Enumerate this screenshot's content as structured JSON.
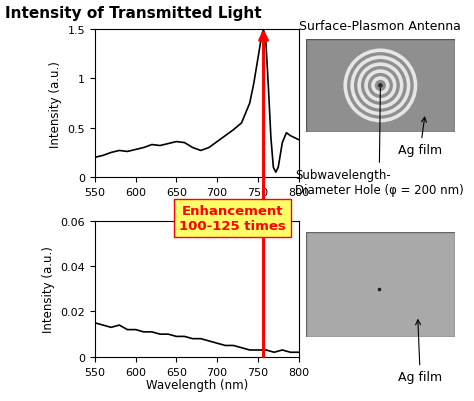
{
  "title": "Intensity of Transmitted Light",
  "annotations": [
    "Enhancement\n100-125 times"
  ],
  "chart_data": [
    {
      "type": "line",
      "y_label": "Intensity (a.u.)",
      "x": [
        550,
        560,
        570,
        580,
        590,
        600,
        610,
        620,
        630,
        640,
        650,
        660,
        670,
        680,
        690,
        700,
        710,
        720,
        730,
        740,
        745,
        750,
        755,
        757,
        760,
        763,
        766,
        769,
        772,
        775,
        780,
        785,
        790,
        800
      ],
      "values": [
        0.2,
        0.22,
        0.25,
        0.27,
        0.26,
        0.28,
        0.3,
        0.33,
        0.32,
        0.34,
        0.36,
        0.35,
        0.3,
        0.27,
        0.3,
        0.36,
        0.42,
        0.48,
        0.55,
        0.75,
        0.95,
        1.2,
        1.45,
        1.5,
        1.35,
        0.9,
        0.4,
        0.1,
        0.05,
        0.1,
        0.35,
        0.45,
        0.42,
        0.38
      ],
      "color": "#000000",
      "xlim": [
        550,
        800
      ],
      "xticks": [
        550,
        600,
        650,
        700,
        750,
        800
      ],
      "ylim": [
        0,
        1.5
      ],
      "yticks": [
        0,
        0.5,
        1,
        1.5
      ],
      "grid": false,
      "annotations": [
        "Surface-Plasmon Antenna",
        "Ag film",
        "Subwavelength-\nDiameter Hole (φ = 200 nm)"
      ]
    },
    {
      "type": "line",
      "x_label": "Wavelength (nm)",
      "y_label": "Intensity (a.u.)",
      "x": [
        550,
        560,
        570,
        580,
        590,
        600,
        610,
        620,
        630,
        640,
        650,
        660,
        670,
        680,
        690,
        700,
        710,
        720,
        730,
        740,
        750,
        760,
        770,
        780,
        790,
        800
      ],
      "values": [
        0.015,
        0.014,
        0.013,
        0.014,
        0.012,
        0.012,
        0.011,
        0.011,
        0.01,
        0.01,
        0.009,
        0.009,
        0.008,
        0.008,
        0.007,
        0.006,
        0.005,
        0.005,
        0.004,
        0.003,
        0.003,
        0.003,
        0.002,
        0.003,
        0.002,
        0.002
      ],
      "color": "#000000",
      "xlim": [
        550,
        800
      ],
      "xticks": [
        550,
        600,
        650,
        700,
        750,
        800
      ],
      "ylim": [
        0,
        0.06
      ],
      "yticks": [
        0,
        0.02,
        0.04,
        0.06
      ],
      "grid": false,
      "annotations": [
        "Ag film"
      ]
    }
  ]
}
